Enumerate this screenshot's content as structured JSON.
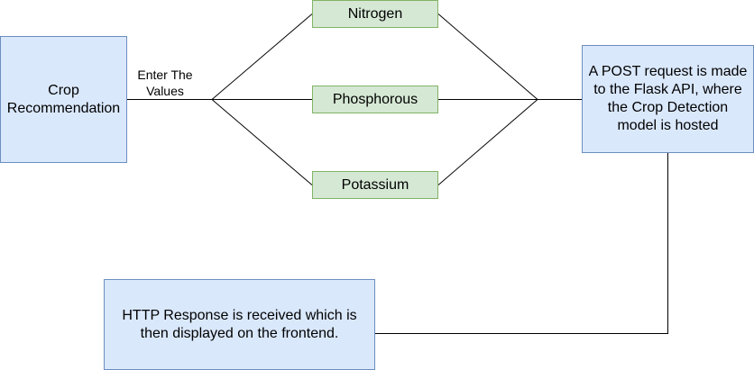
{
  "nodes": {
    "crop_recommendation": "Crop Recommendation",
    "nitrogen": "Nitrogen",
    "phosphorous": "Phosphorous",
    "potassium": "Potassium",
    "post_request": "A POST request is made to the Flask API, where the Crop Detection model is hosted",
    "http_response": "HTTP Response is received which is then displayed on the frontend."
  },
  "edge_labels": {
    "enter_values": "Enter The Values"
  },
  "colors": {
    "blue_fill": "#dae8fc",
    "blue_stroke": "#6c8ebf",
    "green_fill": "#d5e8d4",
    "green_stroke": "#82b366",
    "edge": "#000000"
  }
}
